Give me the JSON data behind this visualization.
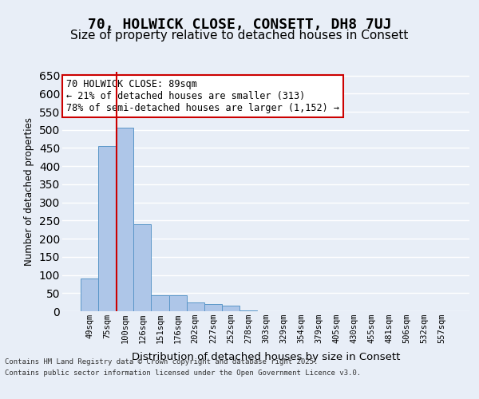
{
  "title": "70, HOLWICK CLOSE, CONSETT, DH8 7UJ",
  "subtitle": "Size of property relative to detached houses in Consett",
  "xlabel": "Distribution of detached houses by size in Consett",
  "ylabel": "Number of detached properties",
  "bin_labels": [
    "49sqm",
    "75sqm",
    "100sqm",
    "126sqm",
    "151sqm",
    "176sqm",
    "202sqm",
    "227sqm",
    "252sqm",
    "278sqm",
    "303sqm",
    "329sqm",
    "354sqm",
    "379sqm",
    "405sqm",
    "430sqm",
    "455sqm",
    "481sqm",
    "506sqm",
    "532sqm",
    "557sqm"
  ],
  "bar_heights": [
    90,
    455,
    505,
    240,
    45,
    45,
    25,
    20,
    15,
    2,
    0,
    0,
    0,
    0,
    0,
    1,
    0,
    0,
    0,
    1,
    0
  ],
  "bar_color": "#aec6e8",
  "bar_edge_color": "#5a96c8",
  "background_color": "#e8eef7",
  "grid_color": "#ffffff",
  "red_line_x": 1.55,
  "annotation_text": "70 HOLWICK CLOSE: 89sqm\n← 21% of detached houses are smaller (313)\n78% of semi-detached houses are larger (1,152) →",
  "annotation_box_color": "#ffffff",
  "annotation_box_edge": "#cc0000",
  "ylim": [
    0,
    660
  ],
  "yticks": [
    0,
    50,
    100,
    150,
    200,
    250,
    300,
    350,
    400,
    450,
    500,
    550,
    600,
    650
  ],
  "footer_line1": "Contains HM Land Registry data © Crown copyright and database right 2025.",
  "footer_line2": "Contains public sector information licensed under the Open Government Licence v3.0.",
  "title_fontsize": 13,
  "subtitle_fontsize": 11
}
